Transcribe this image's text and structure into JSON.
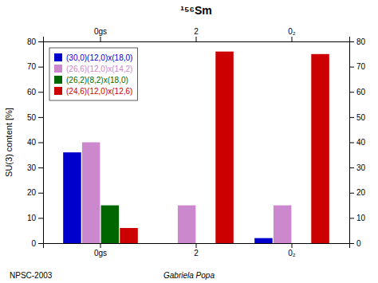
{
  "chart_data": {
    "type": "bar",
    "title": "¹⁵⁶Sm",
    "y_label": "SU(3) content [%]",
    "categories": [
      "0gs",
      "2",
      "0₂"
    ],
    "series": [
      {
        "name": "(30,0)(12,0)x(18,0)",
        "color": "#0000CC",
        "values": [
          36,
          0,
          2
        ]
      },
      {
        "name": "(26,6)(12,0)x(14,2)",
        "color": "#CC88CC",
        "values": [
          40,
          15,
          15
        ]
      },
      {
        "name": "(26,2)(8,2)x(18,0)",
        "color": "#006600",
        "values": [
          15,
          0,
          0
        ]
      },
      {
        "name": "(24,6)(12,0)x(12,6)",
        "color": "#CC0000",
        "values": [
          6,
          76,
          75
        ]
      }
    ],
    "ylim": [
      0,
      80
    ],
    "yticks": [
      0,
      10,
      20,
      30,
      40,
      50,
      60,
      70,
      80
    ],
    "grid": false,
    "legend": "upper left",
    "annotations": [
      "NPSC-2003",
      "Gabriela Popa"
    ]
  }
}
